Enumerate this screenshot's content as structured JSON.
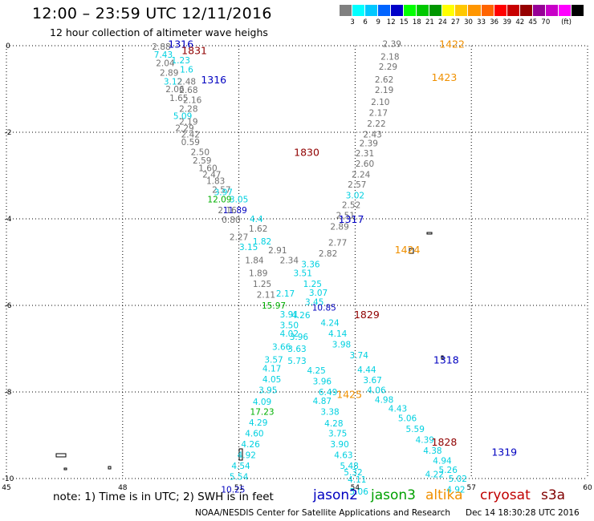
{
  "header": {
    "title": "12:00 – 23:59 UTC 12/11/2016",
    "subtitle": "12 hour collection of altimeter wave heighs"
  },
  "legend": {
    "colors": [
      "#808080",
      "#00ffff",
      "#00c8ff",
      "#0064ff",
      "#0000c8",
      "#00ff00",
      "#00c800",
      "#009600",
      "#ffff00",
      "#ffc800",
      "#ff9600",
      "#ff6400",
      "#ff0000",
      "#c80000",
      "#960000",
      "#960096",
      "#c800c8",
      "#ff00ff",
      "#000000"
    ],
    "labels": [
      "3",
      "6",
      "9",
      "12",
      "15",
      "18",
      "21",
      "24",
      "27",
      "30",
      "33",
      "36",
      "39",
      "42",
      "45",
      "70",
      "(ft)"
    ]
  },
  "map": {
    "x_ticks": [
      "45",
      "48",
      "51",
      "54",
      "57",
      "60"
    ],
    "y_ticks": [
      "0",
      "-2",
      "-4",
      "-6",
      "-8",
      "-10"
    ],
    "colors": {
      "gray": "#707070",
      "cyan": "#00d0e0",
      "navy": "#0000c0",
      "green": "#00b000",
      "orange": "#f09000",
      "maroon": "#900000"
    },
    "time_labels": [
      {
        "text": "1316",
        "lon": 49.5,
        "lat": 0.05,
        "c": "navy"
      },
      {
        "text": "1831",
        "lon": 49.85,
        "lat": -0.1,
        "c": "maroon"
      },
      {
        "text": "1316",
        "lon": 50.35,
        "lat": -0.78,
        "c": "navy"
      },
      {
        "text": "1422",
        "lon": 56.5,
        "lat": 0.05,
        "c": "orange"
      },
      {
        "text": "1423",
        "lon": 56.3,
        "lat": -0.72,
        "c": "orange"
      },
      {
        "text": "1830",
        "lon": 52.75,
        "lat": -2.45,
        "c": "maroon"
      },
      {
        "text": "1317",
        "lon": 53.9,
        "lat": -4.0,
        "c": "navy"
      },
      {
        "text": "1424",
        "lon": 55.35,
        "lat": -4.7,
        "c": "orange"
      },
      {
        "text": "1829",
        "lon": 54.3,
        "lat": -6.2,
        "c": "maroon"
      },
      {
        "text": "1318",
        "lon": 56.35,
        "lat": -7.25,
        "c": "navy"
      },
      {
        "text": "1425",
        "lon": 53.85,
        "lat": -8.05,
        "c": "orange"
      },
      {
        "text": "1828",
        "lon": 56.3,
        "lat": -9.15,
        "c": "maroon"
      },
      {
        "text": "1319",
        "lon": 57.85,
        "lat": -9.38,
        "c": "navy"
      }
    ],
    "points": [
      {
        "text": "2.88",
        "lon": 49.0,
        "lat": -0.02,
        "c": "gray"
      },
      {
        "text": "2.39",
        "lon": 54.95,
        "lat": 0.05,
        "c": "gray"
      },
      {
        "text": "7.43",
        "lon": 49.05,
        "lat": -0.2,
        "c": "cyan"
      },
      {
        "text": "2.18",
        "lon": 54.9,
        "lat": -0.25,
        "c": "gray"
      },
      {
        "text": "1.23",
        "lon": 49.5,
        "lat": -0.33,
        "c": "cyan"
      },
      {
        "text": "2.04",
        "lon": 49.1,
        "lat": -0.4,
        "c": "gray"
      },
      {
        "text": "2.29",
        "lon": 54.85,
        "lat": -0.48,
        "c": "gray"
      },
      {
        "text": "1.6",
        "lon": 49.65,
        "lat": -0.55,
        "c": "cyan"
      },
      {
        "text": "2.89",
        "lon": 49.2,
        "lat": -0.62,
        "c": "gray"
      },
      {
        "text": "3.12",
        "lon": 49.3,
        "lat": -0.82,
        "c": "cyan"
      },
      {
        "text": "2.48",
        "lon": 49.65,
        "lat": -0.82,
        "c": "gray"
      },
      {
        "text": "2.62",
        "lon": 54.75,
        "lat": -0.78,
        "c": "gray"
      },
      {
        "text": "2.06",
        "lon": 49.35,
        "lat": -1.0,
        "c": "gray"
      },
      {
        "text": "2.68",
        "lon": 49.7,
        "lat": -1.02,
        "c": "gray"
      },
      {
        "text": "2.19",
        "lon": 54.75,
        "lat": -1.02,
        "c": "gray"
      },
      {
        "text": "1.65",
        "lon": 49.45,
        "lat": -1.2,
        "c": "gray"
      },
      {
        "text": "2.16",
        "lon": 49.8,
        "lat": -1.25,
        "c": "gray"
      },
      {
        "text": "2.10",
        "lon": 54.65,
        "lat": -1.3,
        "c": "gray"
      },
      {
        "text": "2.28",
        "lon": 49.7,
        "lat": -1.45,
        "c": "gray"
      },
      {
        "text": "2.17",
        "lon": 54.6,
        "lat": -1.55,
        "c": "gray"
      },
      {
        "text": "5.09",
        "lon": 49.55,
        "lat": -1.62,
        "c": "cyan"
      },
      {
        "text": "2.19",
        "lon": 49.7,
        "lat": -1.75,
        "c": "gray"
      },
      {
        "text": "2.22",
        "lon": 54.55,
        "lat": -1.8,
        "c": "gray"
      },
      {
        "text": "2.29",
        "lon": 49.6,
        "lat": -1.9,
        "c": "gray"
      },
      {
        "text": "2.42",
        "lon": 49.75,
        "lat": -2.05,
        "c": "gray"
      },
      {
        "text": "2.43",
        "lon": 54.45,
        "lat": -2.05,
        "c": "gray"
      },
      {
        "text": "0.59",
        "lon": 49.75,
        "lat": -2.22,
        "c": "gray"
      },
      {
        "text": "2.39",
        "lon": 54.35,
        "lat": -2.25,
        "c": "gray"
      },
      {
        "text": "2.50",
        "lon": 50.0,
        "lat": -2.45,
        "c": "gray"
      },
      {
        "text": "2.31",
        "lon": 54.25,
        "lat": -2.48,
        "c": "gray"
      },
      {
        "text": "2.59",
        "lon": 50.05,
        "lat": -2.65,
        "c": "gray"
      },
      {
        "text": "2.60",
        "lon": 54.25,
        "lat": -2.72,
        "c": "gray"
      },
      {
        "text": "1.60",
        "lon": 50.2,
        "lat": -2.82,
        "c": "gray"
      },
      {
        "text": "2.47",
        "lon": 50.3,
        "lat": -2.97,
        "c": "gray"
      },
      {
        "text": "2.24",
        "lon": 54.15,
        "lat": -2.97,
        "c": "gray"
      },
      {
        "text": "1.83",
        "lon": 50.4,
        "lat": -3.12,
        "c": "gray"
      },
      {
        "text": "2.57",
        "lon": 54.05,
        "lat": -3.2,
        "c": "gray"
      },
      {
        "text": "2.57",
        "lon": 50.55,
        "lat": -3.32,
        "c": "gray"
      },
      {
        "text": "3.97",
        "lon": 50.6,
        "lat": -3.38,
        "c": "cyan"
      },
      {
        "text": "3.02",
        "lon": 54.0,
        "lat": -3.45,
        "c": "cyan"
      },
      {
        "text": "12.09",
        "lon": 50.5,
        "lat": -3.55,
        "c": "green"
      },
      {
        "text": "3.05",
        "lon": 51.0,
        "lat": -3.55,
        "c": "cyan"
      },
      {
        "text": "2.52",
        "lon": 53.9,
        "lat": -3.68,
        "c": "gray"
      },
      {
        "text": "2.16",
        "lon": 50.7,
        "lat": -3.8,
        "c": "gray"
      },
      {
        "text": "11.89",
        "lon": 50.9,
        "lat": -3.8,
        "c": "navy"
      },
      {
        "text": "2.51",
        "lon": 53.75,
        "lat": -3.92,
        "c": "gray"
      },
      {
        "text": "0.80",
        "lon": 50.8,
        "lat": -4.02,
        "c": "gray"
      },
      {
        "text": "4.4",
        "lon": 51.45,
        "lat": -4.0,
        "c": "cyan"
      },
      {
        "text": "2.89",
        "lon": 53.6,
        "lat": -4.18,
        "c": "gray"
      },
      {
        "text": "1.62",
        "lon": 51.5,
        "lat": -4.22,
        "c": "gray"
      },
      {
        "text": "2.27",
        "lon": 51.0,
        "lat": -4.42,
        "c": "gray"
      },
      {
        "text": "1.82",
        "lon": 51.6,
        "lat": -4.52,
        "c": "cyan"
      },
      {
        "text": "2.77",
        "lon": 53.55,
        "lat": -4.55,
        "c": "gray"
      },
      {
        "text": "3.15",
        "lon": 51.25,
        "lat": -4.65,
        "c": "cyan"
      },
      {
        "text": "2.91",
        "lon": 52.0,
        "lat": -4.72,
        "c": "gray"
      },
      {
        "text": "2.82",
        "lon": 53.3,
        "lat": -4.8,
        "c": "gray"
      },
      {
        "text": "1.84",
        "lon": 51.4,
        "lat": -4.95,
        "c": "gray"
      },
      {
        "text": "2.34",
        "lon": 52.3,
        "lat": -4.95,
        "c": "gray"
      },
      {
        "text": "3.36",
        "lon": 52.85,
        "lat": -5.05,
        "c": "cyan"
      },
      {
        "text": "1.89",
        "lon": 51.5,
        "lat": -5.25,
        "c": "gray"
      },
      {
        "text": "3.51",
        "lon": 52.65,
        "lat": -5.25,
        "c": "cyan"
      },
      {
        "text": "1.25",
        "lon": 51.6,
        "lat": -5.5,
        "c": "gray"
      },
      {
        "text": "1.25",
        "lon": 52.9,
        "lat": -5.5,
        "c": "cyan"
      },
      {
        "text": "2.11",
        "lon": 51.7,
        "lat": -5.75,
        "c": "gray"
      },
      {
        "text": "2.17",
        "lon": 52.2,
        "lat": -5.72,
        "c": "cyan"
      },
      {
        "text": "3.07",
        "lon": 53.05,
        "lat": -5.7,
        "c": "cyan"
      },
      {
        "text": "3.45",
        "lon": 52.95,
        "lat": -5.92,
        "c": "cyan"
      },
      {
        "text": "15.97",
        "lon": 51.9,
        "lat": -6.0,
        "c": "green"
      },
      {
        "text": "10.85",
        "lon": 53.2,
        "lat": -6.05,
        "c": "navy"
      },
      {
        "text": "3.91",
        "lon": 52.3,
        "lat": -6.2,
        "c": "cyan"
      },
      {
        "text": "4.26",
        "lon": 52.6,
        "lat": -6.22,
        "c": "cyan"
      },
      {
        "text": "4.24",
        "lon": 53.35,
        "lat": -6.4,
        "c": "cyan"
      },
      {
        "text": "3.50",
        "lon": 52.3,
        "lat": -6.45,
        "c": "cyan"
      },
      {
        "text": "4.02",
        "lon": 52.3,
        "lat": -6.65,
        "c": "cyan"
      },
      {
        "text": "3.96",
        "lon": 52.55,
        "lat": -6.72,
        "c": "cyan"
      },
      {
        "text": "4.14",
        "lon": 53.55,
        "lat": -6.65,
        "c": "cyan"
      },
      {
        "text": "3.98",
        "lon": 53.65,
        "lat": -6.9,
        "c": "cyan"
      },
      {
        "text": "3.66",
        "lon": 52.1,
        "lat": -6.95,
        "c": "cyan"
      },
      {
        "text": "3.63",
        "lon": 52.5,
        "lat": -7.0,
        "c": "cyan"
      },
      {
        "text": "3.74",
        "lon": 54.1,
        "lat": -7.15,
        "c": "cyan"
      },
      {
        "text": "3.57",
        "lon": 51.9,
        "lat": -7.25,
        "c": "cyan"
      },
      {
        "text": "5.73",
        "lon": 52.5,
        "lat": -7.28,
        "c": "cyan"
      },
      {
        "text": "4.44",
        "lon": 54.3,
        "lat": -7.48,
        "c": "cyan"
      },
      {
        "text": "4.17",
        "lon": 51.85,
        "lat": -7.45,
        "c": "cyan"
      },
      {
        "text": "4.25",
        "lon": 53.0,
        "lat": -7.5,
        "c": "cyan"
      },
      {
        "text": "3.67",
        "lon": 54.45,
        "lat": -7.72,
        "c": "cyan"
      },
      {
        "text": "4.05",
        "lon": 51.85,
        "lat": -7.7,
        "c": "cyan"
      },
      {
        "text": "3.96",
        "lon": 53.15,
        "lat": -7.75,
        "c": "cyan"
      },
      {
        "text": "4.06",
        "lon": 54.55,
        "lat": -7.95,
        "c": "cyan"
      },
      {
        "text": "3.95",
        "lon": 51.75,
        "lat": -7.95,
        "c": "cyan"
      },
      {
        "text": "6.49",
        "lon": 53.3,
        "lat": -8.0,
        "c": "cyan"
      },
      {
        "text": "4.98",
        "lon": 54.75,
        "lat": -8.18,
        "c": "cyan"
      },
      {
        "text": "4.09",
        "lon": 51.6,
        "lat": -8.22,
        "c": "cyan"
      },
      {
        "text": "4.87",
        "lon": 53.15,
        "lat": -8.2,
        "c": "cyan"
      },
      {
        "text": "4.43",
        "lon": 55.1,
        "lat": -8.38,
        "c": "cyan"
      },
      {
        "text": "17.23",
        "lon": 51.6,
        "lat": -8.45,
        "c": "green"
      },
      {
        "text": "3.38",
        "lon": 53.35,
        "lat": -8.45,
        "c": "cyan"
      },
      {
        "text": "5.06",
        "lon": 55.35,
        "lat": -8.6,
        "c": "cyan"
      },
      {
        "text": "4.29",
        "lon": 51.5,
        "lat": -8.7,
        "c": "cyan"
      },
      {
        "text": "4.28",
        "lon": 53.45,
        "lat": -8.72,
        "c": "cyan"
      },
      {
        "text": "5.59",
        "lon": 55.55,
        "lat": -8.85,
        "c": "cyan"
      },
      {
        "text": "4.60",
        "lon": 51.4,
        "lat": -8.95,
        "c": "cyan"
      },
      {
        "text": "3.75",
        "lon": 53.55,
        "lat": -8.95,
        "c": "cyan"
      },
      {
        "text": "4.39",
        "lon": 55.8,
        "lat": -9.1,
        "c": "cyan"
      },
      {
        "text": "4.26",
        "lon": 51.3,
        "lat": -9.2,
        "c": "cyan"
      },
      {
        "text": "3.90",
        "lon": 53.6,
        "lat": -9.2,
        "c": "cyan"
      },
      {
        "text": "4.38",
        "lon": 56.0,
        "lat": -9.35,
        "c": "cyan"
      },
      {
        "text": "4.94",
        "lon": 56.25,
        "lat": -9.58,
        "c": "cyan"
      },
      {
        "text": "4.92",
        "lon": 51.2,
        "lat": -9.45,
        "c": "cyan"
      },
      {
        "text": "4.63",
        "lon": 53.7,
        "lat": -9.45,
        "c": "cyan"
      },
      {
        "text": "5.26",
        "lon": 56.4,
        "lat": -9.8,
        "c": "cyan"
      },
      {
        "text": "4.54",
        "lon": 51.05,
        "lat": -9.7,
        "c": "cyan"
      },
      {
        "text": "5.48",
        "lon": 53.85,
        "lat": -9.7,
        "c": "cyan"
      },
      {
        "text": "4.22",
        "lon": 56.05,
        "lat": -9.9,
        "c": "cyan"
      },
      {
        "text": "5.32",
        "lon": 53.95,
        "lat": -9.85,
        "c": "cyan"
      },
      {
        "text": "5.54",
        "lon": 51.0,
        "lat": -9.95,
        "c": "cyan"
      },
      {
        "text": "5.02",
        "lon": 56.65,
        "lat": -10.0,
        "c": "cyan"
      },
      {
        "text": "4.11",
        "lon": 54.05,
        "lat": -10.02,
        "c": "cyan"
      },
      {
        "text": "4.92",
        "lon": 56.6,
        "lat": -10.25,
        "c": "cyan"
      },
      {
        "text": "10.25",
        "lon": 50.85,
        "lat": -10.25,
        "c": "navy"
      },
      {
        "text": "5.06",
        "lon": 54.1,
        "lat": -10.3,
        "c": "cyan"
      }
    ]
  },
  "footer": {
    "note": "note: 1) Time is in UTC; 2) SWH is in feet",
    "satellites": [
      {
        "name": "jason2",
        "color": "#0000c0"
      },
      {
        "name": "jason3",
        "color": "#00a000"
      },
      {
        "name": "altika",
        "color": "#f09000"
      },
      {
        "name": "cryosat",
        "color": "#c00000"
      },
      {
        "name": "s3a",
        "color": "#800000"
      }
    ],
    "credit": "NOAA/NESDIS Center for Satellite Applications and Research",
    "date": "Dec 14 18:30:28 UTC 2016"
  }
}
